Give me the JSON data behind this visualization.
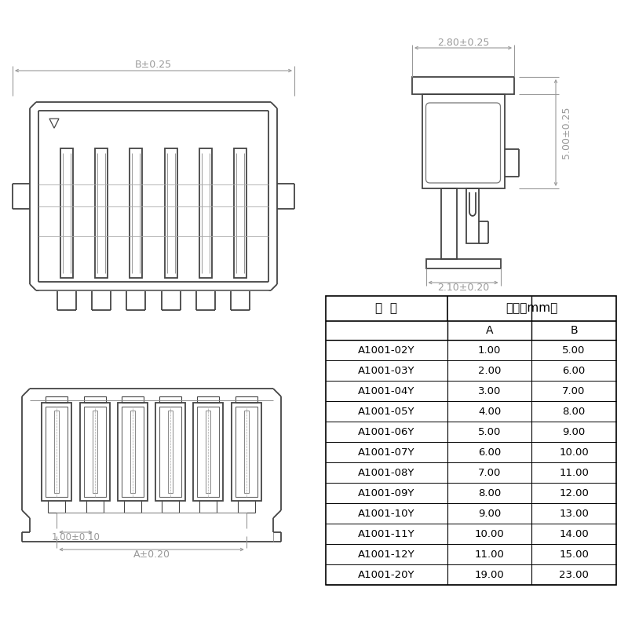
{
  "bg_color": "#ffffff",
  "lc": "#444444",
  "dc": "#999999",
  "tc": "#000000",
  "lw_main": 1.3,
  "lw_dim": 0.8,
  "table_data": {
    "col_headers": [
      "编  号",
      "尺寸（mm）"
    ],
    "sub_headers": [
      "A",
      "B"
    ],
    "rows": [
      [
        "A1001-02Y",
        "1.00",
        "5.00"
      ],
      [
        "A1001-03Y",
        "2.00",
        "6.00"
      ],
      [
        "A1001-04Y",
        "3.00",
        "7.00"
      ],
      [
        "A1001-05Y",
        "4.00",
        "8.00"
      ],
      [
        "A1001-06Y",
        "5.00",
        "9.00"
      ],
      [
        "A1001-07Y",
        "6.00",
        "10.00"
      ],
      [
        "A1001-08Y",
        "7.00",
        "11.00"
      ],
      [
        "A1001-09Y",
        "8.00",
        "12.00"
      ],
      [
        "A1001-10Y",
        "9.00",
        "13.00"
      ],
      [
        "A1001-11Y",
        "10.00",
        "14.00"
      ],
      [
        "A1001-12Y",
        "11.00",
        "15.00"
      ],
      [
        "A1001-20Y",
        "19.00",
        "23.00"
      ]
    ]
  },
  "dim_B": "B±0.25",
  "dim_280": "2.80±0.25",
  "dim_500": "5.00±0.25",
  "dim_210": "2.10±0.20",
  "dim_100": "1.00±0.10",
  "dim_A": "A±0.20"
}
